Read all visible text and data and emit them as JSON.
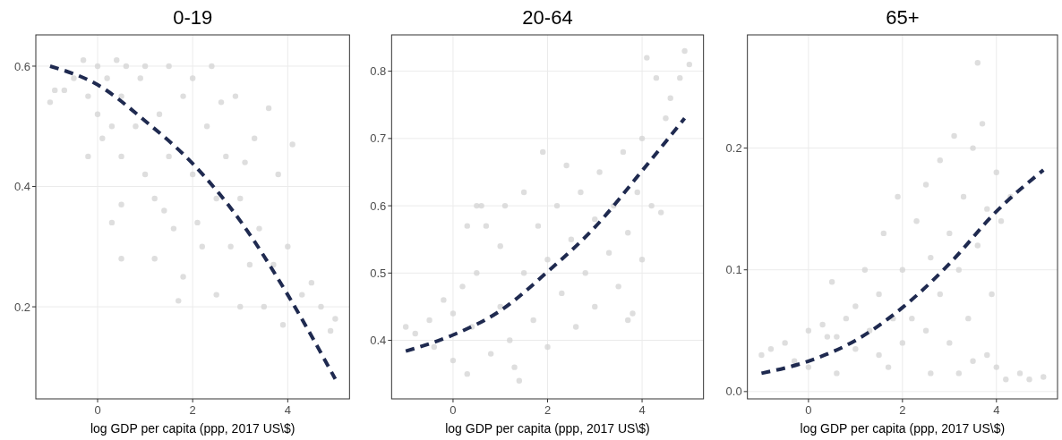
{
  "chart_data": [
    {
      "type": "scatter",
      "title": "0-19",
      "xlabel": "log GDP per capita (ppp, 2017 US\\$)",
      "xlim": [
        -1.3,
        5.3
      ],
      "ylim": [
        0.047,
        0.652
      ],
      "xticks": [
        0,
        2,
        4
      ],
      "yticks": [
        0.2,
        0.4,
        0.6
      ],
      "grid": true,
      "series": [
        {
          "type": "scatter",
          "marker": "circle",
          "color": "#d3d3d3",
          "x": [
            -1,
            -0.9,
            -0.7,
            -0.5,
            -0.3,
            -0.2,
            0,
            0,
            0.2,
            0.3,
            0.4,
            0.5,
            0.5,
            0.6,
            0.8,
            0.9,
            1,
            1,
            1.2,
            1.3,
            1.5,
            1.5,
            1.6,
            1.8,
            1.8,
            2,
            2,
            2.2,
            2.3,
            2.4,
            2.5,
            2.5,
            2.7,
            2.8,
            2.9,
            3,
            3,
            3.2,
            3.3,
            3.4,
            3.5,
            3.6,
            3.7,
            3.8,
            3.9,
            4,
            4.1,
            4.3,
            4.5,
            4.7,
            4.9,
            5,
            0.5,
            0.3,
            0.5,
            1.2,
            1.7,
            -0.2,
            0.1,
            2.6,
            3.1,
            1.4,
            2.1
          ],
          "values": [
            0.54,
            0.56,
            0.56,
            0.58,
            0.61,
            0.55,
            0.6,
            0.52,
            0.58,
            0.5,
            0.61,
            0.55,
            0.45,
            0.6,
            0.5,
            0.58,
            0.42,
            0.6,
            0.38,
            0.52,
            0.6,
            0.45,
            0.33,
            0.55,
            0.25,
            0.42,
            0.58,
            0.3,
            0.5,
            0.6,
            0.38,
            0.22,
            0.45,
            0.3,
            0.55,
            0.2,
            0.38,
            0.27,
            0.48,
            0.33,
            0.2,
            0.53,
            0.27,
            0.42,
            0.17,
            0.3,
            0.47,
            0.22,
            0.24,
            0.2,
            0.16,
            0.18,
            0.37,
            0.34,
            0.28,
            0.28,
            0.21,
            0.45,
            0.48,
            0.54,
            0.44,
            0.36,
            0.34
          ]
        },
        {
          "type": "line",
          "color": "#1f2a50",
          "line_style": "dashed",
          "x": [
            -1,
            0,
            1,
            2,
            3,
            4,
            5
          ],
          "values": [
            0.6,
            0.569,
            0.509,
            0.438,
            0.343,
            0.22,
            0.08
          ]
        }
      ]
    },
    {
      "type": "scatter",
      "title": "20-64",
      "xlabel": "log GDP per capita (ppp, 2017 US\\$)",
      "xlim": [
        -1.3,
        5.3
      ],
      "ylim": [
        0.313,
        0.854
      ],
      "xticks": [
        0,
        2,
        4
      ],
      "yticks": [
        0.4,
        0.5,
        0.6,
        0.7,
        0.8
      ],
      "grid": true,
      "series": [
        {
          "type": "scatter",
          "marker": "circle",
          "color": "#d3d3d3",
          "x": [
            -1,
            -0.8,
            -0.5,
            -0.4,
            -0.2,
            0,
            0,
            0.2,
            0.3,
            0.4,
            0.5,
            0.6,
            0.7,
            0.8,
            1,
            1,
            1.1,
            1.2,
            1.3,
            1.5,
            1.5,
            1.7,
            1.8,
            1.9,
            2,
            2,
            2.2,
            2.3,
            2.4,
            2.5,
            2.6,
            2.7,
            2.8,
            3,
            3,
            3.1,
            3.3,
            3.4,
            3.5,
            3.6,
            3.7,
            3.8,
            3.9,
            4,
            4,
            4.1,
            4.2,
            4.3,
            4.4,
            4.5,
            4.6,
            4.8,
            4.9,
            5,
            0.3,
            0.5,
            3.7,
            1.4
          ],
          "values": [
            0.42,
            0.41,
            0.43,
            0.39,
            0.46,
            0.37,
            0.44,
            0.48,
            0.35,
            0.42,
            0.5,
            0.6,
            0.57,
            0.38,
            0.45,
            0.54,
            0.6,
            0.4,
            0.36,
            0.5,
            0.62,
            0.43,
            0.57,
            0.68,
            0.39,
            0.52,
            0.6,
            0.47,
            0.66,
            0.55,
            0.42,
            0.62,
            0.5,
            0.58,
            0.45,
            0.65,
            0.53,
            0.6,
            0.48,
            0.68,
            0.56,
            0.44,
            0.62,
            0.7,
            0.52,
            0.82,
            0.6,
            0.79,
            0.59,
            0.73,
            0.76,
            0.79,
            0.83,
            0.81,
            0.57,
            0.6,
            0.43,
            0.34
          ]
        },
        {
          "type": "line",
          "color": "#1f2a50",
          "line_style": "dashed",
          "x": [
            -1,
            0,
            1,
            2,
            3,
            4,
            4.9
          ],
          "values": [
            0.384,
            0.408,
            0.444,
            0.502,
            0.568,
            0.652,
            0.73
          ]
        }
      ]
    },
    {
      "type": "scatter",
      "title": "65+",
      "xlabel": "log GDP per capita (ppp, 2017 US\\$)",
      "xlim": [
        -1.3,
        5.3
      ],
      "ylim": [
        -0.006,
        0.293
      ],
      "xticks": [
        0,
        2,
        4
      ],
      "yticks": [
        {
          "value": 0,
          "label": "0.0"
        },
        0.1,
        0.2
      ],
      "grid": true,
      "series": [
        {
          "type": "scatter",
          "marker": "circle",
          "color": "#d3d3d3",
          "x": [
            -1,
            -0.8,
            -0.5,
            -0.3,
            0,
            0,
            0.3,
            0.4,
            0.5,
            0.6,
            0.8,
            1,
            1,
            1.2,
            1.3,
            1.5,
            1.5,
            1.6,
            1.8,
            1.9,
            2,
            2,
            2.2,
            2.3,
            2.5,
            2.5,
            2.6,
            2.8,
            2.8,
            3,
            3,
            3.1,
            3.2,
            3.3,
            3.4,
            3.5,
            3.6,
            3.6,
            3.7,
            3.8,
            3.8,
            3.9,
            4,
            4,
            4.1,
            4.2,
            4.3,
            4.5,
            4.7,
            5,
            2.6,
            3.2,
            3.5,
            0.6,
            1.7
          ],
          "values": [
            0.03,
            0.035,
            0.04,
            0.025,
            0.05,
            0.02,
            0.055,
            0.045,
            0.09,
            0.045,
            0.06,
            0.035,
            0.07,
            0.1,
            0.05,
            0.08,
            0.03,
            0.13,
            0.06,
            0.16,
            0.04,
            0.1,
            0.06,
            0.14,
            0.05,
            0.17,
            0.11,
            0.08,
            0.19,
            0.13,
            0.04,
            0.21,
            0.1,
            0.16,
            0.06,
            0.2,
            0.27,
            0.12,
            0.22,
            0.15,
            0.03,
            0.08,
            0.18,
            0.02,
            0.14,
            0.01,
            0.16,
            0.015,
            0.01,
            0.012,
            0.015,
            0.015,
            0.025,
            0.015,
            0.02
          ]
        },
        {
          "type": "line",
          "color": "#1f2a50",
          "line_style": "dashed",
          "x": [
            -1,
            0,
            1,
            2,
            3,
            4,
            5
          ],
          "values": [
            0.015,
            0.025,
            0.042,
            0.069,
            0.105,
            0.148,
            0.182
          ]
        }
      ]
    }
  ]
}
